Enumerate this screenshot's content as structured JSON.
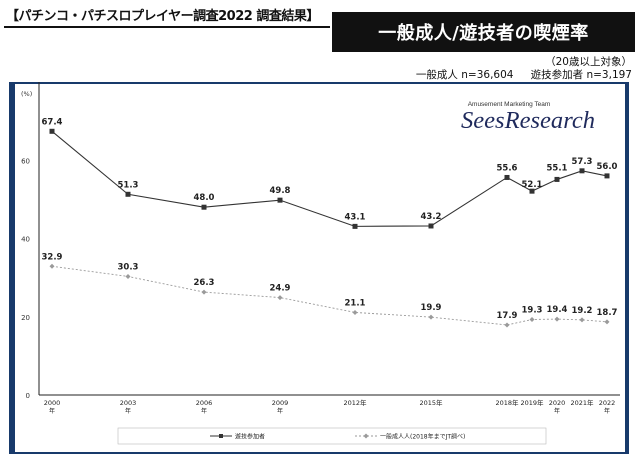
{
  "header": {
    "report_title": "【パチンコ・パチスロプレイヤー調査2022 調査結果】",
    "chart_title": "一般成人/遊技者の喫煙率",
    "note": "（20歳以上対象）",
    "sample_general": "一般成人 n=36,604",
    "sample_players": "遊技参加者 n=3,197"
  },
  "logo": {
    "tagline": "Amusement Marketing Team",
    "name": "SeesResearch"
  },
  "chart_data": {
    "type": "line",
    "unit_label": "(%)",
    "ylim": [
      0,
      80
    ],
    "yticks": [
      0,
      20,
      40,
      60
    ],
    "grid": false,
    "categories": [
      [
        "2000",
        "年"
      ],
      [
        "2003",
        "年"
      ],
      [
        "2006",
        "年"
      ],
      [
        "2009",
        "年"
      ],
      [
        "2012年",
        ""
      ],
      [
        "2015年",
        ""
      ],
      [
        "2018年",
        ""
      ],
      [
        "2019年",
        ""
      ],
      [
        "2020",
        "年"
      ],
      [
        "2021年",
        ""
      ],
      [
        "2022",
        "年"
      ]
    ],
    "series": [
      {
        "name": "遊技参加者",
        "color": "#333333",
        "style": "solid",
        "marker": "square",
        "values": [
          67.4,
          51.3,
          48.0,
          49.8,
          43.1,
          43.2,
          55.6,
          52.1,
          55.1,
          57.3,
          56.0
        ],
        "labels": [
          "67.4",
          "51.3",
          "48.0",
          "49.8",
          "43.1",
          "43.2",
          "55.6",
          "52.1",
          "55.1",
          "57.3",
          "56.0"
        ]
      },
      {
        "name": "一般成人人(2018年までJT調べ)",
        "color": "#9a9a9a",
        "style": "dashed",
        "marker": "diamond",
        "values": [
          32.9,
          30.3,
          26.3,
          24.9,
          21.1,
          19.9,
          17.9,
          19.3,
          19.4,
          19.2,
          18.7
        ],
        "labels": [
          "32.9",
          "30.3",
          "26.3",
          "24.9",
          "21.1",
          "19.9",
          "17.9",
          "19.3",
          "19.4",
          "19.2",
          "18.7"
        ]
      }
    ],
    "legend": "bottom"
  }
}
